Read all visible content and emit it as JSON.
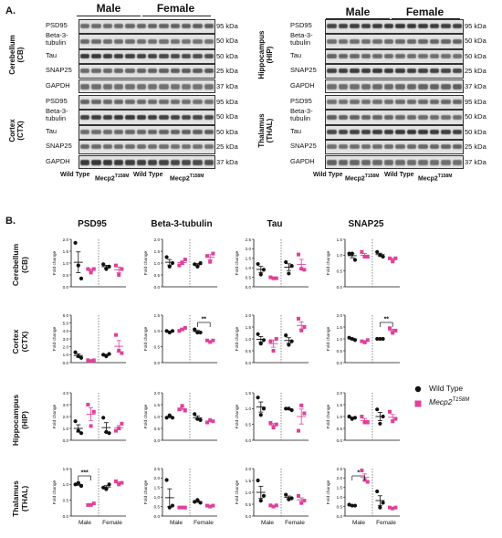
{
  "panel_a": {
    "letter": "A.",
    "sex_labels": [
      "Male",
      "Female"
    ],
    "genotypes": [
      "Wild Type",
      "Mecp2",
      "Wild Type",
      "Mecp2"
    ],
    "genotype_superscript": "T158M",
    "blocks": [
      {
        "region_line1": "Cerebellum",
        "region_line2": "(CB)",
        "proteins": [
          "PSD95",
          "Beta-3-tubulin",
          "Tau",
          "SNAP25",
          "GAPDH"
        ],
        "kda": [
          "95 kDa",
          "50 kDa",
          "50 kDa",
          "25 kDa",
          "37 kDa"
        ]
      },
      {
        "region_line1": "Cortex",
        "region_line2": "(CTX)",
        "proteins": [
          "PSD95",
          "Beta-3-tubulin",
          "Tau",
          "SNAP25",
          "GAPDH"
        ],
        "kda": [
          "95 kDa",
          "50 kDa",
          "50 kDa",
          "25 kDa",
          "37 kDa"
        ]
      },
      {
        "region_line1": "Hippocampus",
        "region_line2": "(HIP)",
        "proteins": [
          "PSD95",
          "Beta-3-tubulin",
          "Tau",
          "SNAP25",
          "GAPDH"
        ],
        "kda": [
          "95 kDa",
          "50 kDa",
          "50 kDa",
          "25 kDa",
          "37 kDa"
        ]
      },
      {
        "region_line1": "Thalamus",
        "region_line2": "(THAL)",
        "proteins": [
          "PSD95",
          "Beta-3-tubulin",
          "Tau",
          "SNAP25",
          "GAPDH"
        ],
        "kda": [
          "95 kDa",
          "50 kDa",
          "50 kDa",
          "25 kDa",
          "37 kDa"
        ]
      }
    ]
  },
  "panel_b": {
    "letter": "B.",
    "columns": [
      "PSD95",
      "Beta-3-tubulin",
      "Tau",
      "SNAP25"
    ],
    "rows": [
      {
        "line1": "Cerebellum",
        "line2": "(CB)"
      },
      {
        "line1": "Cortex",
        "line2": "(CTX)"
      },
      {
        "line1": "Hippocampus",
        "line2": "(HIP)"
      },
      {
        "line1": "Thalamus",
        "line2": "(THAL)"
      }
    ],
    "y_label": "Fold change",
    "x_labels": [
      "Male",
      "Female"
    ],
    "legend": {
      "wild_type": "Wild Type",
      "mutant": "Mecp2",
      "mutant_sup": "T158M"
    },
    "colors": {
      "wild_type": "#111111",
      "mutant": "#e0409a"
    }
  },
  "chart_data": [
    {
      "type": "scatter",
      "row": "Cerebellum (CB)",
      "column": "PSD95",
      "ylim": [
        0,
        2.0
      ],
      "ticks": [
        "0.0",
        "0.5",
        "1.0",
        "1.5",
        "2.0"
      ],
      "groups": [
        {
          "series": "Wild Type",
          "sex": "Male",
          "values": [
            1.85,
            0.9,
            0.35
          ]
        },
        {
          "series": "Mecp2 T158M",
          "sex": "Male",
          "values": [
            0.75,
            0.6,
            0.75
          ]
        },
        {
          "series": "Wild Type",
          "sex": "Female",
          "values": [
            0.95,
            0.75,
            0.85
          ]
        },
        {
          "series": "Mecp2 T158M",
          "sex": "Female",
          "values": [
            0.9,
            0.5,
            0.75
          ]
        }
      ]
    },
    {
      "type": "scatter",
      "row": "Cerebellum (CB)",
      "column": "Beta-3-tubulin",
      "ylim": [
        0,
        2.0
      ],
      "ticks": [
        "0.0",
        "0.5",
        "1.0",
        "1.5",
        "2.0"
      ],
      "groups": [
        {
          "series": "Wild Type",
          "sex": "Male",
          "values": [
            1.25,
            0.85,
            1.0
          ]
        },
        {
          "series": "Mecp2 T158M",
          "sex": "Male",
          "values": [
            0.9,
            1.0,
            1.15
          ]
        },
        {
          "series": "Wild Type",
          "sex": "Female",
          "values": [
            0.95,
            0.85,
            1.0
          ]
        },
        {
          "series": "Mecp2 T158M",
          "sex": "Female",
          "values": [
            1.3,
            1.05,
            1.4
          ]
        }
      ]
    },
    {
      "type": "scatter",
      "row": "Cerebellum (CB)",
      "column": "Tau",
      "ylim": [
        0,
        2.5
      ],
      "ticks": [
        "0.0",
        "0.5",
        "1.0",
        "1.5",
        "2.0",
        "2.5"
      ],
      "groups": [
        {
          "series": "Wild Type",
          "sex": "Male",
          "values": [
            1.2,
            0.65,
            0.9
          ]
        },
        {
          "series": "Mecp2 T158M",
          "sex": "Male",
          "values": [
            0.5,
            0.45,
            0.45
          ]
        },
        {
          "series": "Wild Type",
          "sex": "Female",
          "values": [
            1.3,
            0.7,
            1.1
          ]
        },
        {
          "series": "Mecp2 T158M",
          "sex": "Female",
          "values": [
            1.7,
            0.95,
            0.9
          ]
        }
      ]
    },
    {
      "type": "scatter",
      "row": "Cerebellum (CB)",
      "column": "SNAP25",
      "ylim": [
        0,
        1.5
      ],
      "ticks": [
        "0.0",
        "0.5",
        "1.0",
        "1.5"
      ],
      "groups": [
        {
          "series": "Wild Type",
          "sex": "Male",
          "values": [
            1.05,
            1.05,
            0.85
          ]
        },
        {
          "series": "Mecp2 T158M",
          "sex": "Male",
          "values": [
            1.1,
            0.95,
            0.95
          ]
        },
        {
          "series": "Wild Type",
          "sex": "Female",
          "values": [
            1.1,
            1.0,
            0.95
          ]
        },
        {
          "series": "Mecp2 T158M",
          "sex": "Female",
          "values": [
            0.9,
            0.8,
            0.9
          ]
        }
      ]
    },
    {
      "type": "scatter",
      "row": "Cortex (CTX)",
      "column": "PSD95",
      "ylim": [
        0,
        6.0
      ],
      "ticks": [
        "0.0",
        "1.0",
        "2.0",
        "3.0",
        "4.0",
        "5.0",
        "6.0"
      ],
      "groups": [
        {
          "series": "Wild Type",
          "sex": "Male",
          "values": [
            1.3,
            0.8,
            0.6
          ]
        },
        {
          "series": "Mecp2 T158M",
          "sex": "Male",
          "values": [
            0.3,
            0.2,
            0.3
          ]
        },
        {
          "series": "Wild Type",
          "sex": "Female",
          "values": [
            1.0,
            0.8,
            1.1
          ]
        },
        {
          "series": "Mecp2 T158M",
          "sex": "Female",
          "values": [
            3.5,
            1.5,
            1.2
          ]
        }
      ]
    },
    {
      "type": "scatter",
      "row": "Cortex (CTX)",
      "column": "Beta-3-tubulin",
      "ylim": [
        0,
        1.5
      ],
      "ticks": [
        "0.0",
        "0.5",
        "1.0",
        "1.5"
      ],
      "groups": [
        {
          "series": "Wild Type",
          "sex": "Male",
          "values": [
            1.0,
            0.95,
            1.0
          ]
        },
        {
          "series": "Mecp2 T158M",
          "sex": "Male",
          "values": [
            1.0,
            1.05,
            1.1
          ]
        },
        {
          "series": "Wild Type",
          "sex": "Female",
          "values": [
            1.05,
            0.95,
            0.95
          ]
        },
        {
          "series": "Mecp2 T158M",
          "sex": "Female",
          "values": [
            0.7,
            0.65,
            0.7
          ]
        }
      ],
      "annotation": "**"
    },
    {
      "type": "scatter",
      "row": "Cortex (CTX)",
      "column": "Tau",
      "ylim": [
        0,
        2.0
      ],
      "ticks": [
        "0.0",
        "0.5",
        "1.0",
        "1.5",
        "2.0"
      ],
      "groups": [
        {
          "series": "Wild Type",
          "sex": "Male",
          "values": [
            1.2,
            0.8,
            0.95
          ]
        },
        {
          "series": "Mecp2 T158M",
          "sex": "Male",
          "values": [
            0.9,
            0.5,
            1.0
          ]
        },
        {
          "series": "Wild Type",
          "sex": "Female",
          "values": [
            1.15,
            0.75,
            0.9
          ]
        },
        {
          "series": "Mecp2 T158M",
          "sex": "Female",
          "values": [
            1.85,
            1.35,
            1.5
          ]
        }
      ]
    },
    {
      "type": "scatter",
      "row": "Cortex (CTX)",
      "column": "SNAP25",
      "ylim": [
        0,
        2.0
      ],
      "ticks": [
        "0.0",
        "0.5",
        "1.0",
        "1.5",
        "2.0"
      ],
      "groups": [
        {
          "series": "Wild Type",
          "sex": "Male",
          "values": [
            1.05,
            1.0,
            0.95
          ]
        },
        {
          "series": "Mecp2 T158M",
          "sex": "Male",
          "values": [
            0.9,
            0.85,
            0.95
          ]
        },
        {
          "series": "Wild Type",
          "sex": "Female",
          "values": [
            1.0,
            1.0,
            1.0
          ]
        },
        {
          "series": "Mecp2 T158M",
          "sex": "Female",
          "values": [
            1.45,
            1.25,
            1.35
          ]
        }
      ],
      "annotation": "**"
    },
    {
      "type": "scatter",
      "row": "Hippocampus (HIP)",
      "column": "PSD95",
      "ylim": [
        0,
        4.0
      ],
      "ticks": [
        "0.0",
        "1.0",
        "2.0",
        "3.0",
        "4.0"
      ],
      "groups": [
        {
          "series": "Wild Type",
          "sex": "Male",
          "values": [
            1.6,
            0.8,
            0.6
          ]
        },
        {
          "series": "Mecp2 T158M",
          "sex": "Male",
          "values": [
            3.0,
            1.2,
            2.4
          ]
        },
        {
          "series": "Wild Type",
          "sex": "Female",
          "values": [
            1.9,
            0.7,
            0.6
          ]
        },
        {
          "series": "Mecp2 T158M",
          "sex": "Female",
          "values": [
            0.8,
            1.0,
            1.4
          ]
        }
      ]
    },
    {
      "type": "scatter",
      "row": "Hippocampus (HIP)",
      "column": "Beta-3-tubulin",
      "ylim": [
        0,
        2.0
      ],
      "ticks": [
        "0.0",
        "0.5",
        "1.0",
        "1.5",
        "2.0"
      ],
      "groups": [
        {
          "series": "Wild Type",
          "sex": "Male",
          "values": [
            0.95,
            1.05,
            0.95
          ]
        },
        {
          "series": "Mecp2 T158M",
          "sex": "Male",
          "values": [
            1.3,
            1.45,
            1.25
          ]
        },
        {
          "series": "Wild Type",
          "sex": "Female",
          "values": [
            1.1,
            0.9,
            0.85
          ]
        },
        {
          "series": "Mecp2 T158M",
          "sex": "Female",
          "values": [
            0.75,
            0.85,
            0.8
          ]
        }
      ]
    },
    {
      "type": "scatter",
      "row": "Hippocampus (HIP)",
      "column": "Tau",
      "ylim": [
        0,
        1.5
      ],
      "ticks": [
        "0.0",
        "0.5",
        "1.0",
        "1.5"
      ],
      "groups": [
        {
          "series": "Wild Type",
          "sex": "Male",
          "values": [
            1.35,
            0.8,
            1.0
          ]
        },
        {
          "series": "Mecp2 T158M",
          "sex": "Male",
          "values": [
            0.55,
            0.4,
            0.5
          ]
        },
        {
          "series": "Wild Type",
          "sex": "Female",
          "values": [
            1.0,
            1.0,
            0.95
          ]
        },
        {
          "series": "Mecp2 T158M",
          "sex": "Female",
          "values": [
            0.3,
            1.1,
            0.85
          ]
        }
      ]
    },
    {
      "type": "scatter",
      "row": "Hippocampus (HIP)",
      "column": "SNAP25",
      "ylim": [
        0,
        2.0
      ],
      "ticks": [
        "0.0",
        "0.5",
        "1.0",
        "1.5",
        "2.0"
      ],
      "groups": [
        {
          "series": "Wild Type",
          "sex": "Male",
          "values": [
            1.0,
            0.9,
            0.95
          ]
        },
        {
          "series": "Mecp2 T158M",
          "sex": "Male",
          "values": [
            1.0,
            0.75,
            0.75
          ]
        },
        {
          "series": "Wild Type",
          "sex": "Female",
          "values": [
            1.3,
            0.7,
            1.0
          ]
        },
        {
          "series": "Mecp2 T158M",
          "sex": "Female",
          "values": [
            1.2,
            0.8,
            0.9
          ]
        }
      ]
    },
    {
      "type": "scatter",
      "row": "Thalamus (THAL)",
      "column": "PSD95",
      "ylim": [
        0,
        1.5
      ],
      "ticks": [
        "0.0",
        "0.5",
        "1.0",
        "1.5"
      ],
      "groups": [
        {
          "series": "Wild Type",
          "sex": "Male",
          "values": [
            1.0,
            1.05,
            0.95
          ]
        },
        {
          "series": "Mecp2 T158M",
          "sex": "Male",
          "values": [
            0.35,
            0.35,
            0.4
          ]
        },
        {
          "series": "Wild Type",
          "sex": "Female",
          "values": [
            0.9,
            0.85,
            1.0
          ]
        },
        {
          "series": "Mecp2 T158M",
          "sex": "Female",
          "values": [
            1.1,
            1.0,
            1.05
          ]
        }
      ],
      "annotation": "***"
    },
    {
      "type": "scatter",
      "row": "Thalamus (THAL)",
      "column": "Beta-3-tubulin",
      "ylim": [
        0,
        2.5
      ],
      "ticks": [
        "0.0",
        "0.5",
        "1.0",
        "1.5",
        "2.0",
        "2.5"
      ],
      "groups": [
        {
          "series": "Wild Type",
          "sex": "Male",
          "values": [
            1.9,
            0.45,
            0.55
          ]
        },
        {
          "series": "Mecp2 T158M",
          "sex": "Male",
          "values": [
            0.45,
            0.45,
            0.45
          ]
        },
        {
          "series": "Wild Type",
          "sex": "Female",
          "values": [
            0.75,
            0.85,
            0.7
          ]
        },
        {
          "series": "Mecp2 T158M",
          "sex": "Female",
          "values": [
            0.55,
            0.5,
            0.55
          ]
        }
      ]
    },
    {
      "type": "scatter",
      "row": "Thalamus (THAL)",
      "column": "Tau",
      "ylim": [
        0,
        2.0
      ],
      "ticks": [
        "0.0",
        "0.5",
        "1.0",
        "1.5",
        "2.0"
      ],
      "groups": [
        {
          "series": "Wild Type",
          "sex": "Male",
          "values": [
            1.5,
            0.65,
            0.85
          ]
        },
        {
          "series": "Mecp2 T158M",
          "sex": "Male",
          "values": [
            0.45,
            0.4,
            0.45
          ]
        },
        {
          "series": "Wild Type",
          "sex": "Female",
          "values": [
            0.9,
            0.7,
            0.75
          ]
        },
        {
          "series": "Mecp2 T158M",
          "sex": "Female",
          "values": [
            0.85,
            0.55,
            0.65
          ]
        }
      ]
    },
    {
      "type": "scatter",
      "row": "Thalamus (THAL)",
      "column": "SNAP25",
      "ylim": [
        0,
        2.5
      ],
      "ticks": [
        "0.0",
        "0.5",
        "1.0",
        "1.5",
        "2.0",
        "2.5"
      ],
      "groups": [
        {
          "series": "Wild Type",
          "sex": "Male",
          "values": [
            0.6,
            0.55,
            0.55
          ]
        },
        {
          "series": "Mecp2 T158M",
          "sex": "Male",
          "values": [
            2.4,
            1.9,
            1.8
          ]
        },
        {
          "series": "Wild Type",
          "sex": "Female",
          "values": [
            1.3,
            0.45,
            0.7
          ]
        },
        {
          "series": "Mecp2 T158M",
          "sex": "Female",
          "values": [
            0.45,
            0.4,
            0.45
          ]
        }
      ],
      "annotation": "*"
    }
  ]
}
